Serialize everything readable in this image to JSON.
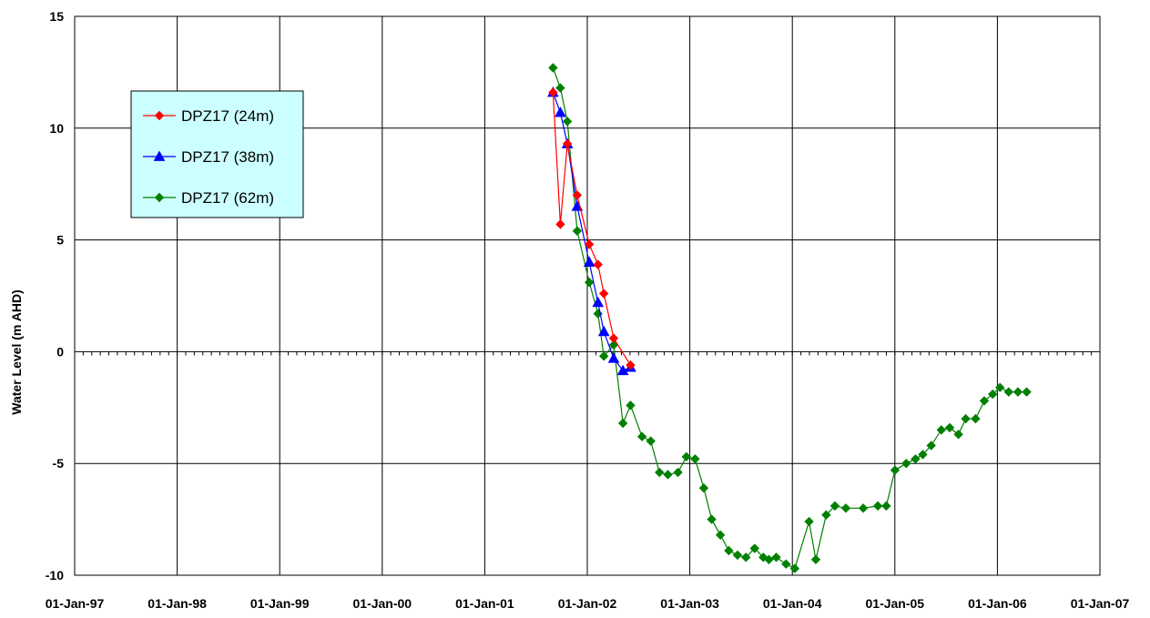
{
  "chart_data": {
    "type": "line",
    "title": "",
    "xlabel": "",
    "ylabel": "Water Level (m AHD)",
    "ylim": [
      -10,
      15
    ],
    "yticks": [
      15,
      10,
      5,
      0,
      -5,
      -10
    ],
    "xlim": [
      "1997-01-01",
      "2007-01-01"
    ],
    "xticks": [
      "01-Jan-97",
      "01-Jan-98",
      "01-Jan-99",
      "01-Jan-00",
      "01-Jan-01",
      "01-Jan-02",
      "01-Jan-03",
      "01-Jan-04",
      "01-Jan-05",
      "01-Jan-06",
      "01-Jan-07"
    ],
    "grid": true,
    "legend_position": "upper-left",
    "series": [
      {
        "name": "DPZ17 (24m)",
        "color": "#ff0000",
        "marker": "diamond",
        "points": [
          [
            "2001-09-01",
            11.6
          ],
          [
            "2001-09-27",
            5.7
          ],
          [
            "2001-10-22",
            9.3
          ],
          [
            "2001-11-26",
            7.0
          ],
          [
            "2002-01-08",
            4.8
          ],
          [
            "2002-02-08",
            3.9
          ],
          [
            "2002-03-01",
            2.6
          ],
          [
            "2002-04-05",
            0.6
          ],
          [
            "2002-06-04",
            -0.6
          ]
        ]
      },
      {
        "name": "DPZ17 (38m)",
        "color": "#0000ff",
        "marker": "triangle",
        "points": [
          [
            "2001-09-01",
            11.6
          ],
          [
            "2001-09-27",
            10.7
          ],
          [
            "2001-10-22",
            9.3
          ],
          [
            "2001-11-26",
            6.5
          ],
          [
            "2002-01-08",
            4.0
          ],
          [
            "2002-02-08",
            2.2
          ],
          [
            "2002-03-01",
            0.9
          ],
          [
            "2002-04-05",
            -0.3
          ],
          [
            "2002-05-08",
            -0.85
          ],
          [
            "2002-06-04",
            -0.7
          ]
        ]
      },
      {
        "name": "DPZ17 (62m)",
        "color": "#008000",
        "marker": "diamond",
        "points": [
          [
            "2001-09-01",
            12.7
          ],
          [
            "2001-09-27",
            11.8
          ],
          [
            "2001-10-22",
            10.3
          ],
          [
            "2001-11-26",
            5.4
          ],
          [
            "2002-01-08",
            3.1
          ],
          [
            "2002-02-08",
            1.7
          ],
          [
            "2002-03-01",
            -0.2
          ],
          [
            "2002-04-05",
            0.3
          ],
          [
            "2002-05-08",
            -3.2
          ],
          [
            "2002-06-04",
            -2.4
          ],
          [
            "2002-07-15",
            -3.8
          ],
          [
            "2002-08-15",
            -4.0
          ],
          [
            "2002-09-15",
            -5.4
          ],
          [
            "2002-10-15",
            -5.5
          ],
          [
            "2002-11-20",
            -5.4
          ],
          [
            "2002-12-20",
            -4.7
          ],
          [
            "2003-01-20",
            -4.8
          ],
          [
            "2003-02-20",
            -6.1
          ],
          [
            "2003-03-20",
            -7.5
          ],
          [
            "2003-04-20",
            -8.2
          ],
          [
            "2003-05-20",
            -8.9
          ],
          [
            "2003-06-20",
            -9.1
          ],
          [
            "2003-07-20",
            -9.2
          ],
          [
            "2003-08-20",
            -8.8
          ],
          [
            "2003-09-20",
            -9.2
          ],
          [
            "2003-10-10",
            -9.3
          ],
          [
            "2003-11-05",
            -9.2
          ],
          [
            "2003-12-10",
            -9.5
          ],
          [
            "2004-01-10",
            -9.7
          ],
          [
            "2004-03-01",
            -7.6
          ],
          [
            "2004-03-25",
            -9.3
          ],
          [
            "2004-05-01",
            -7.3
          ],
          [
            "2004-06-01",
            -6.9
          ],
          [
            "2004-07-10",
            -7.0
          ],
          [
            "2004-09-10",
            -7.0
          ],
          [
            "2004-11-01",
            -6.9
          ],
          [
            "2004-12-01",
            -6.9
          ],
          [
            "2005-01-01",
            -5.3
          ],
          [
            "2005-02-10",
            -5.0
          ],
          [
            "2005-03-15",
            -4.8
          ],
          [
            "2005-04-10",
            -4.6
          ],
          [
            "2005-05-10",
            -4.2
          ],
          [
            "2005-06-15",
            -3.5
          ],
          [
            "2005-07-15",
            -3.4
          ],
          [
            "2005-08-15",
            -3.7
          ],
          [
            "2005-09-10",
            -3.0
          ],
          [
            "2005-10-15",
            -3.0
          ],
          [
            "2005-11-15",
            -2.2
          ],
          [
            "2005-12-15",
            -1.9
          ],
          [
            "2006-01-10",
            -1.6
          ],
          [
            "2006-02-10",
            -1.8
          ],
          [
            "2006-03-15",
            -1.8
          ],
          [
            "2006-04-15",
            -1.8
          ]
        ]
      }
    ]
  }
}
